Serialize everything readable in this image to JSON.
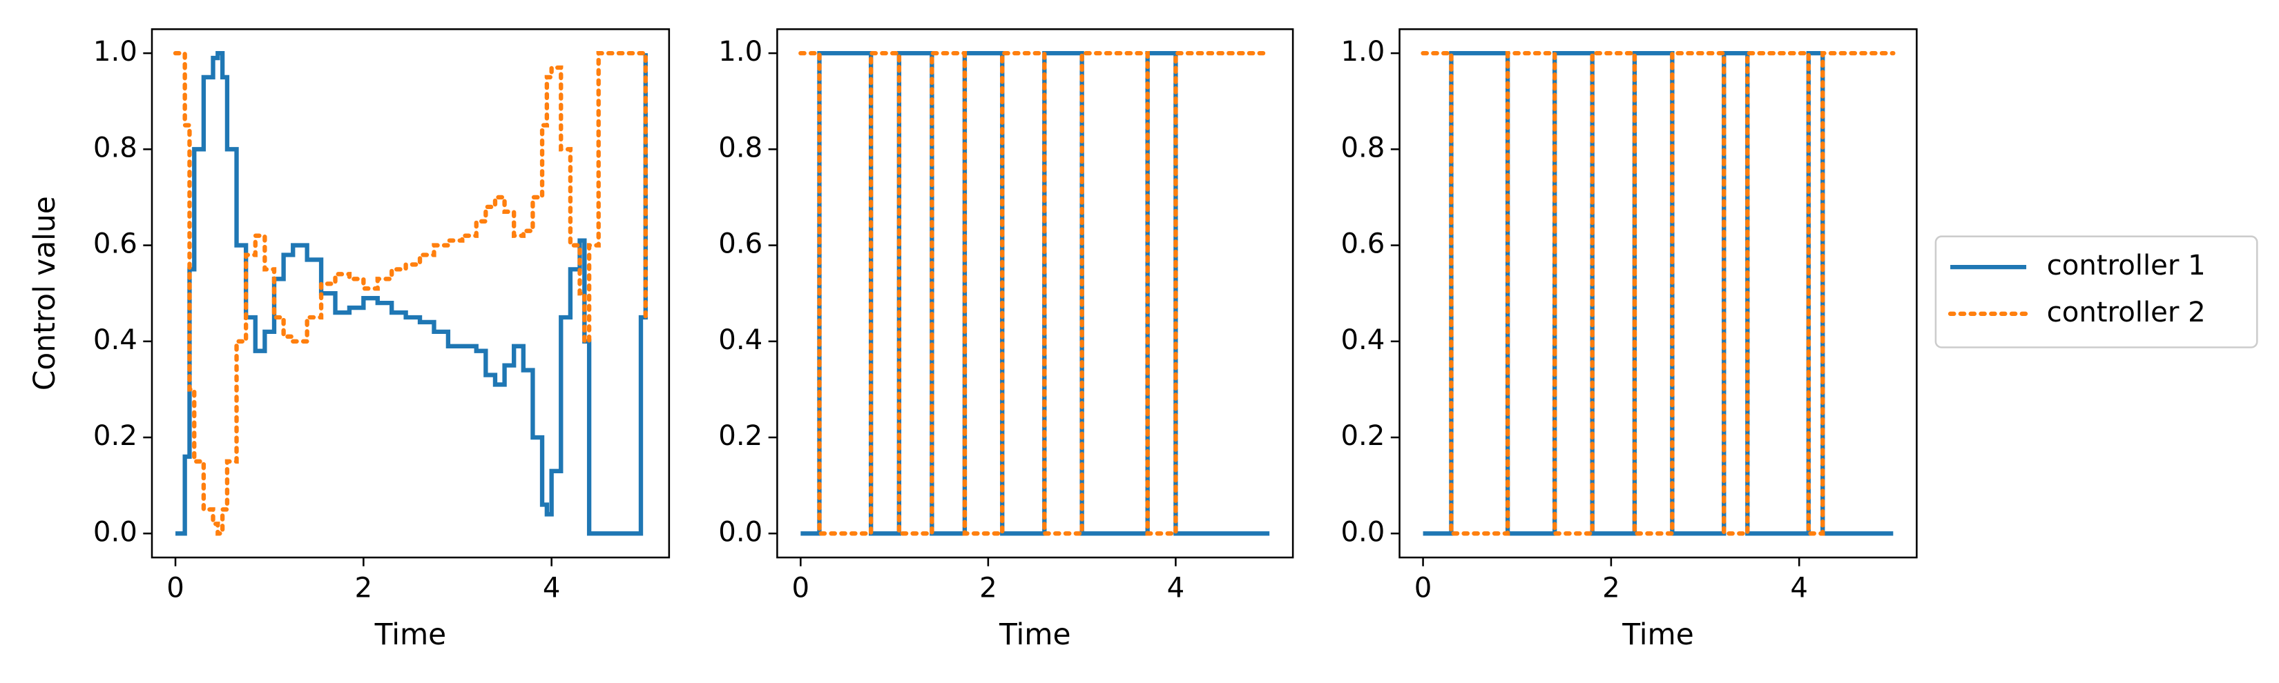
{
  "chart_data": [
    {
      "type": "line",
      "step": "post",
      "xlabel": "Time",
      "ylabel": "Control value",
      "x": [
        0,
        0.1,
        0.15,
        0.2,
        0.3,
        0.4,
        0.45,
        0.5,
        0.55,
        0.65,
        0.75,
        0.85,
        0.95,
        1.05,
        1.15,
        1.25,
        1.4,
        1.55,
        1.7,
        1.85,
        2.0,
        2.15,
        2.3,
        2.45,
        2.6,
        2.75,
        2.9,
        3.05,
        3.2,
        3.3,
        3.4,
        3.5,
        3.6,
        3.7,
        3.8,
        3.9,
        3.95,
        4.0,
        4.1,
        4.2,
        4.3,
        4.35,
        4.4,
        4.5,
        4.95,
        5.0
      ],
      "series": [
        {
          "name": "controller 1",
          "color": "#1f77b4",
          "dash": "solid",
          "values": [
            0,
            0.16,
            0.55,
            0.8,
            0.95,
            0.99,
            1.0,
            0.95,
            0.8,
            0.6,
            0.45,
            0.38,
            0.42,
            0.53,
            0.58,
            0.6,
            0.57,
            0.5,
            0.46,
            0.47,
            0.49,
            0.48,
            0.46,
            0.45,
            0.44,
            0.42,
            0.39,
            0.39,
            0.38,
            0.33,
            0.31,
            0.35,
            0.39,
            0.34,
            0.2,
            0.06,
            0.04,
            0.13,
            0.45,
            0.55,
            0.61,
            0.4,
            0,
            0,
            0.45,
            1.0
          ]
        },
        {
          "name": "controller 2",
          "color": "#ff7f0e",
          "dash": "dotted",
          "values": [
            1.0,
            0.85,
            0.3,
            0.15,
            0.05,
            0.02,
            0,
            0.05,
            0.15,
            0.4,
            0.58,
            0.62,
            0.55,
            0.45,
            0.41,
            0.4,
            0.45,
            0.52,
            0.54,
            0.53,
            0.51,
            0.53,
            0.55,
            0.56,
            0.58,
            0.6,
            0.61,
            0.62,
            0.65,
            0.68,
            0.7,
            0.67,
            0.62,
            0.63,
            0.7,
            0.85,
            0.95,
            0.97,
            0.8,
            0.6,
            0.5,
            0.4,
            0.6,
            1.0,
            1.0,
            0.45
          ]
        }
      ],
      "xlim": [
        -0.25,
        5.25
      ],
      "ylim": [
        -0.05,
        1.05
      ],
      "xticks": [
        0,
        2,
        4
      ],
      "yticks": [
        {
          "value": 0,
          "label": "0.0"
        },
        {
          "value": 0.2,
          "label": "0.2"
        },
        {
          "value": 0.4,
          "label": "0.4"
        },
        {
          "value": 0.6,
          "label": "0.6"
        },
        {
          "value": 0.8,
          "label": "0.8"
        },
        {
          "value": 1,
          "label": "1.0"
        }
      ]
    },
    {
      "type": "line",
      "step": "post",
      "xlabel": "Time",
      "x": [
        0,
        0.2,
        0.75,
        1.05,
        1.4,
        1.75,
        2.15,
        2.6,
        3.0,
        3.7,
        4.0,
        5.0
      ],
      "series": [
        {
          "name": "controller 1",
          "color": "#1f77b4",
          "dash": "solid",
          "values": [
            0,
            1,
            0,
            1,
            0,
            1,
            0,
            1,
            0,
            1,
            0,
            0
          ]
        },
        {
          "name": "controller 2",
          "color": "#ff7f0e",
          "dash": "dotted",
          "values": [
            1,
            0,
            1,
            0,
            1,
            0,
            1,
            0,
            1,
            0,
            1,
            1
          ]
        }
      ],
      "xlim": [
        -0.25,
        5.25
      ],
      "ylim": [
        -0.05,
        1.05
      ],
      "xticks": [
        0,
        2,
        4
      ],
      "yticks": [
        {
          "value": 0,
          "label": "0.0"
        },
        {
          "value": 0.2,
          "label": "0.2"
        },
        {
          "value": 0.4,
          "label": "0.4"
        },
        {
          "value": 0.6,
          "label": "0.6"
        },
        {
          "value": 0.8,
          "label": "0.8"
        },
        {
          "value": 1,
          "label": "1.0"
        }
      ]
    },
    {
      "type": "line",
      "step": "post",
      "xlabel": "Time",
      "legend": "outside right",
      "x": [
        0,
        0.3,
        0.9,
        1.4,
        1.8,
        2.25,
        2.65,
        3.2,
        3.45,
        4.1,
        4.25,
        5.0
      ],
      "series": [
        {
          "name": "controller 1",
          "color": "#1f77b4",
          "dash": "solid",
          "values": [
            0,
            1,
            0,
            1,
            0,
            1,
            0,
            1,
            0,
            1,
            0,
            0
          ]
        },
        {
          "name": "controller 2",
          "color": "#ff7f0e",
          "dash": "dotted",
          "values": [
            1,
            0,
            1,
            0,
            1,
            0,
            1,
            0,
            1,
            0,
            1,
            1
          ]
        }
      ],
      "xlim": [
        -0.25,
        5.25
      ],
      "ylim": [
        -0.05,
        1.05
      ],
      "xticks": [
        0,
        2,
        4
      ],
      "yticks": [
        {
          "value": 0,
          "label": "0.0"
        },
        {
          "value": 0.2,
          "label": "0.2"
        },
        {
          "value": 0.4,
          "label": "0.4"
        },
        {
          "value": 0.6,
          "label": "0.6"
        },
        {
          "value": 0.8,
          "label": "0.8"
        },
        {
          "value": 1,
          "label": "1.0"
        }
      ]
    }
  ]
}
